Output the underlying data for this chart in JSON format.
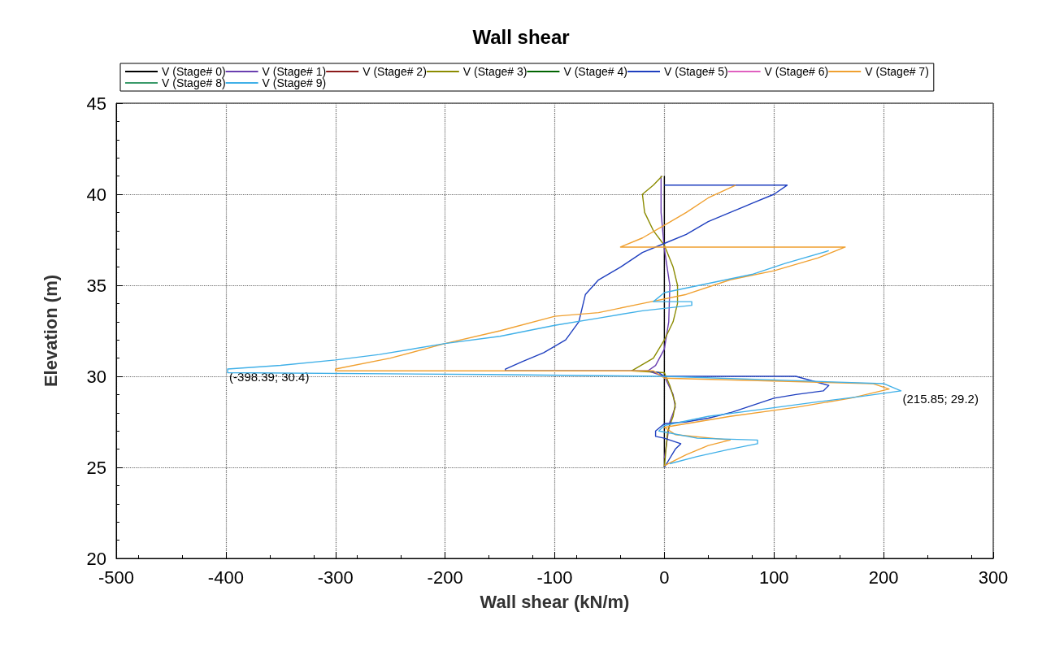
{
  "chart_data": {
    "type": "line",
    "title": "Wall shear",
    "xlabel": "Wall shear (kN/m)",
    "ylabel": "Elevation (m)",
    "xlim": [
      -500,
      300
    ],
    "xticks": [
      -500,
      -400,
      -300,
      -200,
      -100,
      0,
      100,
      200,
      300
    ],
    "ylim": [
      20,
      45
    ],
    "yticks": [
      20,
      25,
      30,
      35,
      40,
      45
    ],
    "grid": true,
    "legend": "top",
    "marker": "none",
    "line_style": "solid",
    "annotations": [
      {
        "text": "(-398.39; 30.4)",
        "x": -398.39,
        "y": 30.4
      },
      {
        "text": "(215.85; 29.2)",
        "x": 215.85,
        "y": 29.2
      }
    ],
    "series": [
      {
        "name": "V (Stage# 0)",
        "color": "#000000",
        "x": [
          0,
          0
        ],
        "values": [
          41,
          25
        ]
      },
      {
        "name": "V (Stage# 1)",
        "color": "#6a3fb0",
        "x": [
          -3,
          -3,
          0,
          5,
          4,
          0,
          -8,
          -15,
          0,
          8,
          10,
          5,
          0
        ],
        "values": [
          41,
          39,
          37,
          35,
          33,
          31.5,
          30.6,
          30.3,
          30,
          29,
          28.3,
          27.5,
          25.5
        ]
      },
      {
        "name": "V (Stage# 2)",
        "color": "#8b1a1a",
        "x": [
          null
        ],
        "values": [
          null
        ]
      },
      {
        "name": "V (Stage# 3)",
        "color": "#8b8b00",
        "x": [
          -2,
          -10,
          -20,
          -18,
          -10,
          0,
          8,
          12,
          12,
          8,
          0,
          -10,
          -30,
          0,
          5,
          10,
          8,
          3,
          0
        ],
        "values": [
          41,
          40.5,
          40,
          39,
          38,
          37.2,
          36,
          35,
          34,
          33,
          32,
          31,
          30.3,
          30.2,
          29.5,
          28.5,
          27.8,
          27,
          25
        ]
      },
      {
        "name": "V (Stage# 4)",
        "color": "#006400",
        "x": [
          null
        ],
        "values": [
          null
        ]
      },
      {
        "name": "V (Stage# 5)",
        "color": "#1f3fbf",
        "x": [
          0,
          112,
          100,
          80,
          60,
          40,
          20,
          0,
          -20,
          -40,
          -60,
          -72,
          -78,
          -90,
          -110,
          -130,
          -145,
          -145,
          -15,
          -5,
          0,
          120,
          150,
          145,
          120,
          100,
          80,
          60,
          40,
          20,
          0,
          -8,
          -8,
          0,
          15,
          10,
          0
        ],
        "values": [
          40.5,
          40.5,
          40,
          39.5,
          39,
          38.5,
          37.8,
          37.3,
          36.8,
          36,
          35.3,
          34.5,
          33,
          32,
          31.3,
          30.8,
          30.4,
          30.3,
          30.3,
          30.2,
          30,
          30,
          29.5,
          29.2,
          29,
          28.8,
          28.4,
          28,
          27.7,
          27.5,
          27.4,
          27,
          26.7,
          26.6,
          26.3,
          26,
          25
        ]
      },
      {
        "name": "V (Stage# 6)",
        "color": "#e060c0",
        "x": [
          null
        ],
        "values": [
          null
        ]
      },
      {
        "name": "V (Stage# 7)",
        "color": "#f0a030",
        "x": [
          65,
          40,
          20,
          0,
          -20,
          -40,
          165,
          140,
          100,
          60,
          20,
          -20,
          -60,
          -100,
          -150,
          -200,
          -250,
          -300,
          -300,
          -10,
          0,
          190,
          205,
          170,
          120,
          60,
          20,
          0,
          10,
          60,
          40,
          20,
          0
        ],
        "values": [
          40.5,
          39.8,
          39,
          38.3,
          37.6,
          37.1,
          37.1,
          36.5,
          35.8,
          35.3,
          34.5,
          34,
          33.5,
          33.3,
          32.5,
          31.8,
          31,
          30.4,
          30.3,
          30.3,
          29.9,
          29.6,
          29.3,
          28.8,
          28.3,
          27.8,
          27.4,
          27.2,
          26.8,
          26.5,
          26.2,
          25.7,
          25.1
        ]
      },
      {
        "name": "V (Stage# 8)",
        "color": "#3a9a6a",
        "x": [
          null
        ],
        "values": [
          null
        ]
      },
      {
        "name": "V (Stage# 9)",
        "color": "#40b0e8",
        "x": [
          150,
          110,
          80,
          40,
          0,
          -10,
          25,
          25,
          -20,
          -60,
          -100,
          -150,
          -200,
          -260,
          -300,
          -350,
          -398.39,
          -398.39,
          -160,
          0,
          200,
          215.85,
          180,
          140,
          90,
          40,
          0,
          -5,
          30,
          85,
          85,
          60,
          30,
          5
        ],
        "values": [
          36.9,
          36.2,
          35.6,
          35.1,
          34.6,
          34.1,
          34.1,
          33.9,
          33.6,
          33.2,
          32.8,
          32.2,
          31.8,
          31.2,
          30.9,
          30.6,
          30.4,
          30.2,
          30.1,
          30,
          29.6,
          29.2,
          28.9,
          28.6,
          28.2,
          27.8,
          27.3,
          27,
          26.6,
          26.5,
          26.3,
          26,
          25.6,
          25.2
        ]
      }
    ]
  }
}
